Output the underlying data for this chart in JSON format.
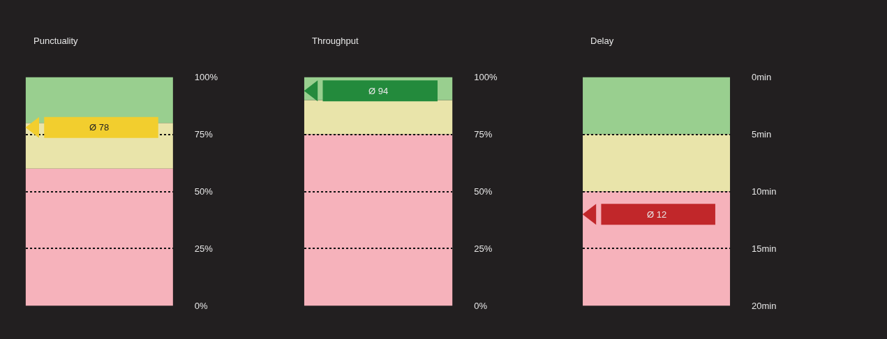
{
  "chart_data": [
    {
      "type": "scatter",
      "title": "Punctuality",
      "categories": [
        null
      ],
      "values": [
        78
      ],
      "color": "#f2ce2e",
      "marker": "triangle",
      "ylim": [
        0,
        100
      ],
      "yticks": [
        {
          "value": 0,
          "label": "0%"
        },
        {
          "value": 25,
          "label": "25%"
        },
        {
          "value": 50,
          "label": "50%"
        },
        {
          "value": 75,
          "label": "75%"
        },
        {
          "value": 100,
          "label": "100%"
        }
      ],
      "grid": "y",
      "tick_labels": "y",
      "ref_lines": [
        {
          "axis": "y",
          "value": 78,
          "label": "Ø 78",
          "color": "#f2ce2e"
        }
      ],
      "bands": [
        {
          "axis": "y",
          "from": 0,
          "to": 60,
          "color": "#f6b2bb"
        },
        {
          "axis": "y",
          "from": 60,
          "to": 80,
          "color": "#e9e4aa"
        },
        {
          "axis": "y",
          "from": 80,
          "to": 100,
          "color": "#99cf8f"
        }
      ]
    },
    {
      "type": "scatter",
      "title": "Throughput",
      "categories": [
        null
      ],
      "values": [
        94
      ],
      "color": "#238a3c",
      "marker": "triangle",
      "ylim": [
        0,
        100
      ],
      "yticks": [
        {
          "value": 0,
          "label": "0%"
        },
        {
          "value": 25,
          "label": "25%"
        },
        {
          "value": 50,
          "label": "50%"
        },
        {
          "value": 75,
          "label": "75%"
        },
        {
          "value": 100,
          "label": "100%"
        }
      ],
      "grid": "y",
      "tick_labels": "y",
      "ref_lines": [
        {
          "axis": "y",
          "value": 94,
          "label": "Ø 94",
          "color": "#238a3c"
        }
      ],
      "bands": [
        {
          "axis": "y",
          "from": 0,
          "to": 75,
          "color": "#f6b2bb"
        },
        {
          "axis": "y",
          "from": 75,
          "to": 90,
          "color": "#e9e4aa"
        },
        {
          "axis": "y",
          "from": 90,
          "to": 100,
          "color": "#99cf8f"
        }
      ]
    },
    {
      "type": "scatter",
      "title": "Delay",
      "categories": [
        null
      ],
      "values": [
        12
      ],
      "color": "#c1272a",
      "marker": "triangle",
      "ylim": [
        20,
        0
      ],
      "yticks": [
        {
          "value": 0,
          "label": "0min"
        },
        {
          "value": 5,
          "label": "5min"
        },
        {
          "value": 10,
          "label": "10min"
        },
        {
          "value": 15,
          "label": "15min"
        },
        {
          "value": 20,
          "label": "20min"
        }
      ],
      "grid": "y",
      "tick_labels": "y",
      "ref_lines": [
        {
          "axis": "y",
          "value": 12,
          "label": "Ø 12",
          "color": "#c1272a"
        }
      ],
      "bands": [
        {
          "axis": "y",
          "from": 0,
          "to": 5,
          "color": "#99cf8f"
        },
        {
          "axis": "y",
          "from": 5,
          "to": 10,
          "color": "#e9e4aa"
        },
        {
          "axis": "y",
          "from": 10,
          "to": 20,
          "color": "#f6b2bb"
        }
      ]
    }
  ]
}
